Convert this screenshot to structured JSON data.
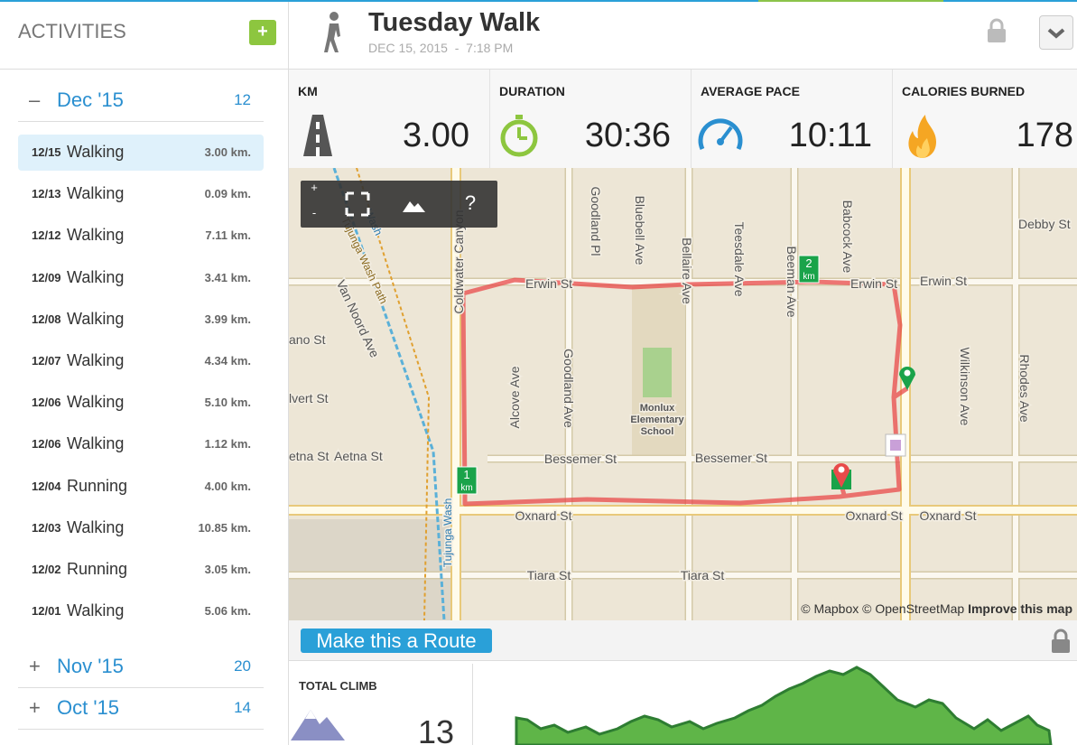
{
  "sidebar": {
    "title": "ACTIVITIES",
    "add_button": "+",
    "months": [
      {
        "toggle": "–",
        "label": "Dec '15",
        "count": 12,
        "activities": [
          {
            "date": "12/15",
            "type": "Walking",
            "distance": "3.00 km."
          },
          {
            "date": "12/13",
            "type": "Walking",
            "distance": "0.09 km."
          },
          {
            "date": "12/12",
            "type": "Walking",
            "distance": "7.11 km."
          },
          {
            "date": "12/09",
            "type": "Walking",
            "distance": "3.41 km."
          },
          {
            "date": "12/08",
            "type": "Walking",
            "distance": "3.99 km."
          },
          {
            "date": "12/07",
            "type": "Walking",
            "distance": "4.34 km."
          },
          {
            "date": "12/06",
            "type": "Walking",
            "distance": "5.10 km."
          },
          {
            "date": "12/06",
            "type": "Walking",
            "distance": "1.12 km."
          },
          {
            "date": "12/04",
            "type": "Running",
            "distance": "4.00 km."
          },
          {
            "date": "12/03",
            "type": "Walking",
            "distance": "10.85 km."
          },
          {
            "date": "12/02",
            "type": "Running",
            "distance": "3.05 km."
          },
          {
            "date": "12/01",
            "type": "Walking",
            "distance": "5.06 km."
          }
        ]
      },
      {
        "toggle": "+",
        "label": "Nov '15",
        "count": 20
      },
      {
        "toggle": "+",
        "label": "Oct '15",
        "count": 14
      }
    ]
  },
  "header": {
    "title": "Tuesday Walk",
    "subtitle": "DEC 15, 2015  -  7:18 PM"
  },
  "stats": [
    {
      "label": "KM",
      "value": "3.00"
    },
    {
      "label": "DURATION",
      "value": "30:36"
    },
    {
      "label": "AVERAGE PACE",
      "value": "10:11"
    },
    {
      "label": "CALORIES BURNED",
      "value": 178
    }
  ],
  "map": {
    "controls": {
      "zoom_in": "+",
      "zoom_out": "-",
      "help": "?"
    },
    "markers": [
      {
        "number": "1",
        "unit": "km"
      },
      {
        "number": "2",
        "unit": "km"
      }
    ],
    "attribution": {
      "mapbox": "© Mapbox",
      "osm": "© OpenStreetMap",
      "improve": "Improve this map"
    },
    "labels": [
      "Erwin St",
      "Erwin St",
      "Erwin St",
      "Oxnard St",
      "Oxnard St",
      "Oxnard St",
      "Bessemer St",
      "Bessemer St",
      "Tiara St",
      "Tiara St",
      "etna St",
      "Aetna St",
      "ano St",
      "lvert St",
      "Debby St",
      "Coldwater Canyon",
      "Goodland Pl",
      "Bluebell Ave",
      "Bellaire Ave",
      "Teesdale Ave",
      "Beeman Ave",
      "Babcock Ave",
      "Van Noord Ave",
      "Tujunga Wash Path",
      "Wash",
      "Tujunga Wash",
      "Alcove Ave",
      "Goodland Ave",
      "Wilkinson Ave",
      "Rhodes Ave",
      "Monlux",
      "Elementary",
      "School"
    ]
  },
  "route_button": "Make this a Route",
  "climb": {
    "label": "TOTAL CLIMB",
    "value": 13
  }
}
